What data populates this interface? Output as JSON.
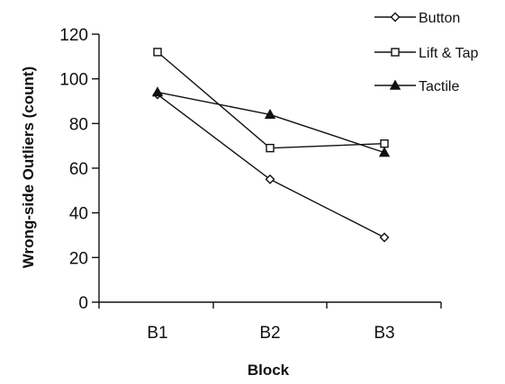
{
  "chart_data": {
    "type": "line",
    "title": "",
    "xlabel": "Block",
    "ylabel": "Wrong-side Outliers (count)",
    "categories": [
      "B1",
      "B2",
      "B3"
    ],
    "ylim": [
      0,
      120
    ],
    "yticks": [
      0,
      20,
      40,
      60,
      80,
      100,
      120
    ],
    "grid": false,
    "legend_position": "top-right",
    "series": [
      {
        "name": "Button",
        "marker": "diamond",
        "values": [
          93,
          55,
          29
        ]
      },
      {
        "name": "Lift & Tap",
        "marker": "square",
        "values": [
          112,
          69,
          71
        ]
      },
      {
        "name": "Tactile",
        "marker": "triangle",
        "values": [
          94,
          84,
          67
        ]
      }
    ],
    "colors": {
      "line": "#111111",
      "marker_fill": "#ffffff"
    }
  }
}
